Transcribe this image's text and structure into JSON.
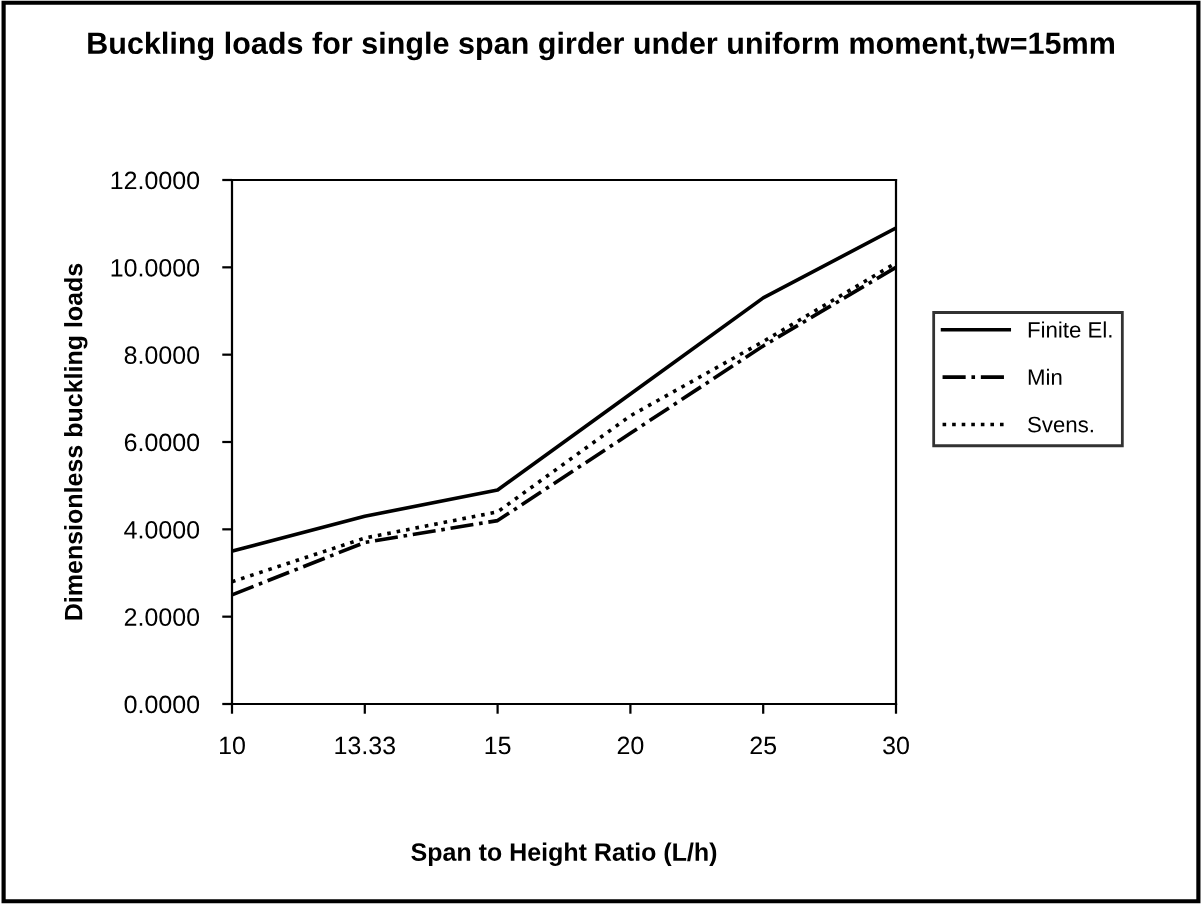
{
  "chart_data": {
    "type": "line",
    "title": "Buckling loads for single span girder under uniform moment,tw=15mm",
    "xlabel": "Span to Height Ratio (L/h)",
    "ylabel": "Dimensionless buckling loads",
    "categories": [
      "10",
      "13.33",
      "15",
      "20",
      "25",
      "30"
    ],
    "series": [
      {
        "name": "Finite El.",
        "color": "#000000",
        "line_style": "solid",
        "values": [
          3.5,
          4.3,
          4.9,
          7.1,
          9.3,
          10.9
        ]
      },
      {
        "name": "Min",
        "color": "#000000",
        "line_style": "dashdot",
        "values": [
          2.5,
          3.7,
          4.2,
          6.2,
          8.2,
          10.0
        ]
      },
      {
        "name": "Svens.",
        "color": "#000000",
        "line_style": "dotted",
        "values": [
          2.8,
          3.8,
          4.4,
          6.6,
          8.3,
          10.1
        ]
      }
    ],
    "ylim": [
      0,
      12
    ],
    "yticks": [
      {
        "value": 0,
        "label": "0.0000"
      },
      {
        "value": 2,
        "label": "2.0000"
      },
      {
        "value": 4,
        "label": "4.0000"
      },
      {
        "value": 6,
        "label": "6.0000"
      },
      {
        "value": 8,
        "label": "8.0000"
      },
      {
        "value": 10,
        "label": "10.0000"
      },
      {
        "value": 12,
        "label": "12.0000"
      }
    ],
    "grid": false,
    "legend": "right"
  }
}
